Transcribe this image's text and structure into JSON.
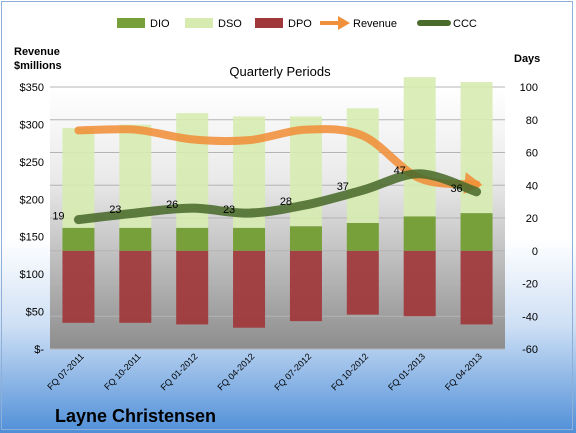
{
  "chart_data": {
    "type": "bar",
    "title": "Quarterly Periods",
    "company": "Layne Christensen",
    "y_left_label_line1": "Revenue",
    "y_left_label_line2": "$millions",
    "y_right_label": "Days",
    "y_left_lim": [
      0,
      350
    ],
    "y_right_lim": [
      -60,
      100
    ],
    "y_left_ticks": [
      "$-",
      "$50",
      "$100",
      "$150",
      "$200",
      "$250",
      "$300",
      "$350"
    ],
    "y_left_tick_values": [
      0,
      50,
      100,
      150,
      200,
      250,
      300,
      350
    ],
    "y_right_ticks": [
      "-60",
      "-40",
      "-20",
      "0",
      "20",
      "40",
      "60",
      "80",
      "100"
    ],
    "y_right_tick_values": [
      -60,
      -40,
      -20,
      0,
      20,
      40,
      60,
      80,
      100
    ],
    "categories": [
      "FQ 07-2011",
      "FQ 10-2011",
      "FQ 01-2012",
      "FQ 04-2012",
      "FQ 07-2012",
      "FQ 10-2012",
      "FQ 01-2013",
      "FQ 04-2013"
    ],
    "series": [
      {
        "name": "DIO",
        "axis": "right",
        "type": "bar",
        "values": [
          14,
          14,
          14,
          14,
          15,
          17,
          21,
          23
        ],
        "color": "#77a03a"
      },
      {
        "name": "DSO",
        "axis": "right",
        "type": "bar",
        "values": [
          61,
          63,
          70,
          68,
          67,
          70,
          85,
          80
        ],
        "color": "#d7ebb0"
      },
      {
        "name": "DPO",
        "axis": "right",
        "type": "bar",
        "values": [
          -44,
          -44,
          -45,
          -47,
          -43,
          -39,
          -40,
          -45
        ],
        "color": "#a0373a"
      },
      {
        "name": "Revenue",
        "axis": "left",
        "type": "line",
        "values": [
          292,
          293,
          280,
          279,
          293,
          285,
          228,
          220
        ],
        "color": "#f0903a"
      },
      {
        "name": "CCC",
        "axis": "right",
        "type": "line",
        "values": [
          19,
          23,
          26,
          23,
          28,
          37,
          47,
          36
        ],
        "color": "#4a6b2c"
      }
    ],
    "ccc_labels": [
      "19",
      "23",
      "26",
      "23",
      "28",
      "37",
      "47",
      "36"
    ],
    "legend_position": "top"
  }
}
